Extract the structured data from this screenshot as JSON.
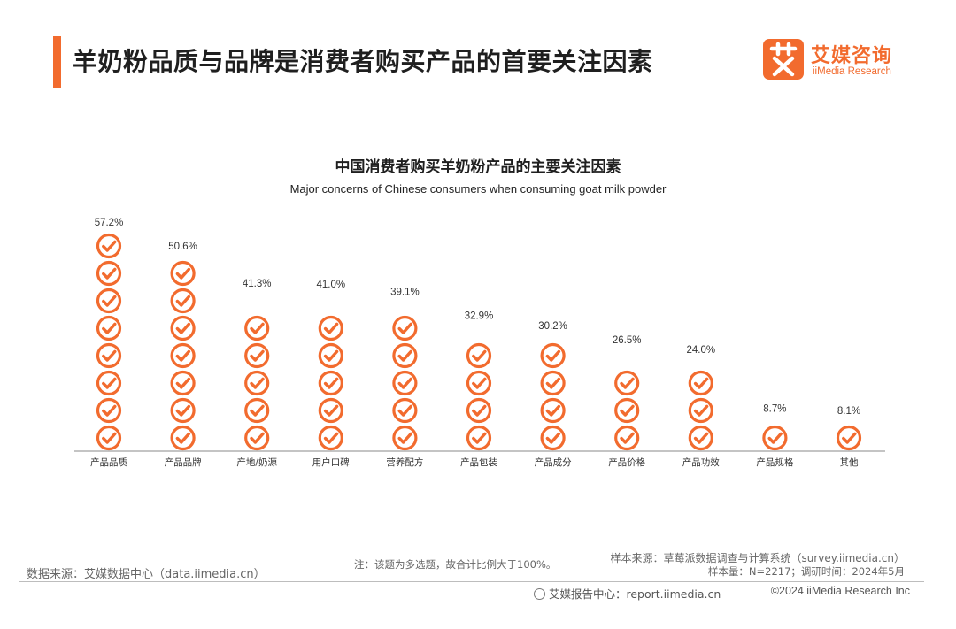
{
  "header": {
    "title": "羊奶粉品质与品牌是消费者购买产品的首要关注因素"
  },
  "logo": {
    "mark_char": "艾",
    "cn": "艾媒咨询",
    "en": "iiMedia Research",
    "color": "#f26b2e"
  },
  "chart_data": {
    "type": "bar",
    "title": "中国消费者购买羊奶粉产品的主要关注因素",
    "subtitle": "Major concerns of Chinese consumers when consuming goat milk powder",
    "categories": [
      "产品品质",
      "产品品牌",
      "产地/奶源",
      "用户口碑",
      "营养配方",
      "产品包装",
      "产品成分",
      "产品价格",
      "产品功效",
      "产品规格",
      "其他"
    ],
    "values": [
      57.2,
      50.6,
      41.3,
      41.0,
      39.1,
      32.9,
      30.2,
      26.5,
      24.0,
      8.7,
      8.1
    ],
    "value_labels": [
      "57.2%",
      "50.6%",
      "41.3%",
      "41.0%",
      "39.1%",
      "32.9%",
      "30.2%",
      "26.5%",
      "24.0%",
      "8.7%",
      "8.1%"
    ],
    "unit": "%",
    "ylim": [
      0,
      60
    ],
    "mark": "check-circle-icon",
    "color": "#f26b2e",
    "grid": false,
    "legend": "none"
  },
  "footer": {
    "data_source": "数据来源：艾媒数据中心（data.iimedia.cn）",
    "note": "注：该题为多选题，故合计比例大于100%。",
    "sample_source": "样本来源：草莓派数据调查与计算系统（survey.iimedia.cn）",
    "sample_meta": "样本量：N=2217；调研时间：2024年5月",
    "report_center": "艾媒报告中心：report.iimedia.cn",
    "copyright": "©2024  iiMedia Research  Inc"
  }
}
